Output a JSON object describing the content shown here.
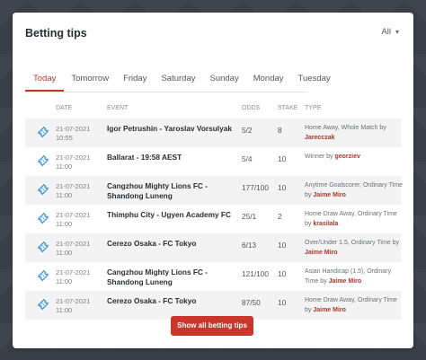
{
  "header": {
    "title": "Betting tips",
    "filter_value": "All"
  },
  "tabs": [
    "Today",
    "Tomorrow",
    "Friday",
    "Saturday",
    "Sunday",
    "Monday",
    "Tuesday"
  ],
  "columns": {
    "date": "DATE",
    "event": "EVENT",
    "odds": "ODDS",
    "stake": "STAKE",
    "type": "TYPE"
  },
  "rows": [
    {
      "date": "21-07-2021",
      "time": "10:55",
      "event": "Igor Petrushin - Yaroslav Vorsulyak",
      "odds": "5/2",
      "stake": "8",
      "type_prefix": "Home Away, Whole Match by ",
      "tipster": "Jarecczak"
    },
    {
      "date": "21-07-2021",
      "time": "11:00",
      "event": "Ballarat - 19:58 AEST",
      "odds": "5/4",
      "stake": "10",
      "type_prefix": "Winner by ",
      "tipster": "georziev"
    },
    {
      "date": "21-07-2021",
      "time": "11:00",
      "event": "Cangzhou Mighty Lions FC - Shandong Luneng",
      "odds": "177/100",
      "stake": "10",
      "type_prefix": "Anytime Goalscorer, Ordinary Time by ",
      "tipster": "Jaime Miro"
    },
    {
      "date": "21-07-2021",
      "time": "11:00",
      "event": "Thimphu City - Ugyen Academy FC",
      "odds": "25/1",
      "stake": "2",
      "type_prefix": "Home Draw Away, Ordinary Time by ",
      "tipster": "krasilala"
    },
    {
      "date": "21-07-2021",
      "time": "11:00",
      "event": "Cerezo Osaka - FC Tokyo",
      "odds": "6/13",
      "stake": "10",
      "type_prefix": "Over/Under 1.5, Ordinary Time by ",
      "tipster": "Jaime Miro"
    },
    {
      "date": "21-07-2021",
      "time": "11:00",
      "event": "Cangzhou Mighty Lions FC - Shandong Luneng",
      "odds": "121/100",
      "stake": "10",
      "type_prefix": "Asian Handicap (1.5), Ordinary Time by ",
      "tipster": "Jaime Miro"
    },
    {
      "date": "21-07-2021",
      "time": "11:00",
      "event": "Cerezo Osaka - FC Tokyo",
      "odds": "87/50",
      "stake": "10",
      "type_prefix": "Home Draw Away, Ordinary Time by ",
      "tipster": "Jaime Miro"
    }
  ],
  "footer": {
    "button_label": "Show all betting tips"
  },
  "colors": {
    "accent": "#c9372c",
    "icon": "#2f8ed9"
  },
  "icons": {
    "row_icon": "ticket-icon",
    "filter_icon": "chevron-down-icon"
  }
}
